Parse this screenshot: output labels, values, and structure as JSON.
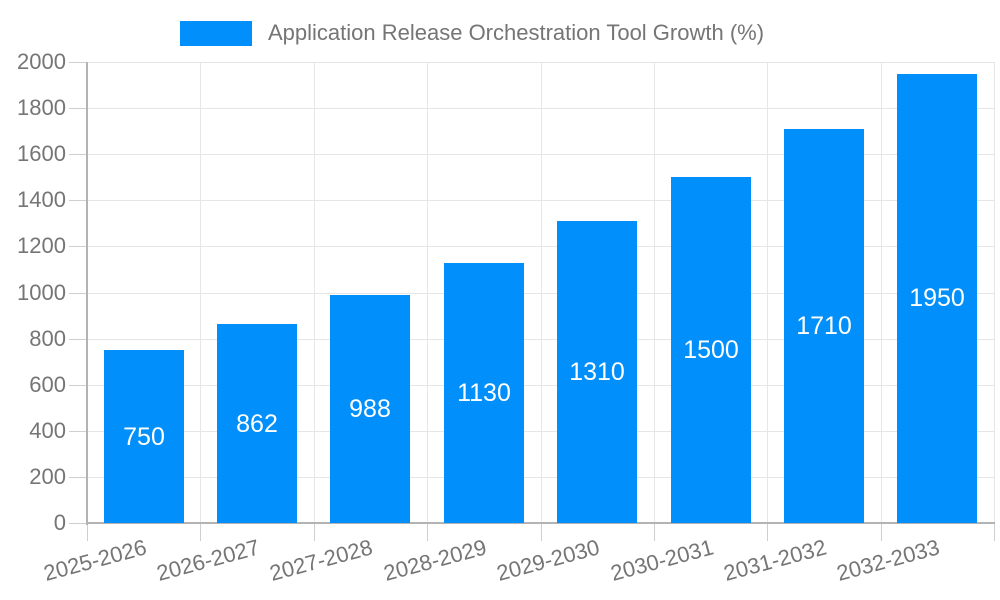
{
  "legend": {
    "label": "Application Release Orchestration Tool Growth (%)"
  },
  "chart_data": {
    "type": "bar",
    "title": "",
    "xlabel": "",
    "ylabel": "",
    "legend_position": "top",
    "categories": [
      "2025-2026",
      "2026-2027",
      "2027-2028",
      "2028-2029",
      "2029-2030",
      "2030-2031",
      "2031-2032",
      "2032-2033"
    ],
    "series": [
      {
        "name": "Application Release Orchestration Tool Growth (%)",
        "values": [
          750,
          862,
          988,
          1130,
          1310,
          1500,
          1710,
          1950
        ]
      }
    ],
    "data_labels": [
      "750",
      "862",
      "988",
      "1130",
      "1310",
      "1500",
      "1710",
      "1950"
    ],
    "ylim": [
      0,
      2000
    ],
    "yticks": [
      0,
      200,
      400,
      600,
      800,
      1000,
      1200,
      1400,
      1600,
      1800,
      2000
    ],
    "grid": "both",
    "x_label_rotation_deg": -15,
    "colors": {
      "bar": "#008FFB",
      "grid": "#e6e6e6",
      "axis": "#b3b3b3",
      "tick": "#cfcfcf",
      "axis_text": "#757575",
      "value_text": "#ffffff",
      "background": "#ffffff"
    }
  }
}
